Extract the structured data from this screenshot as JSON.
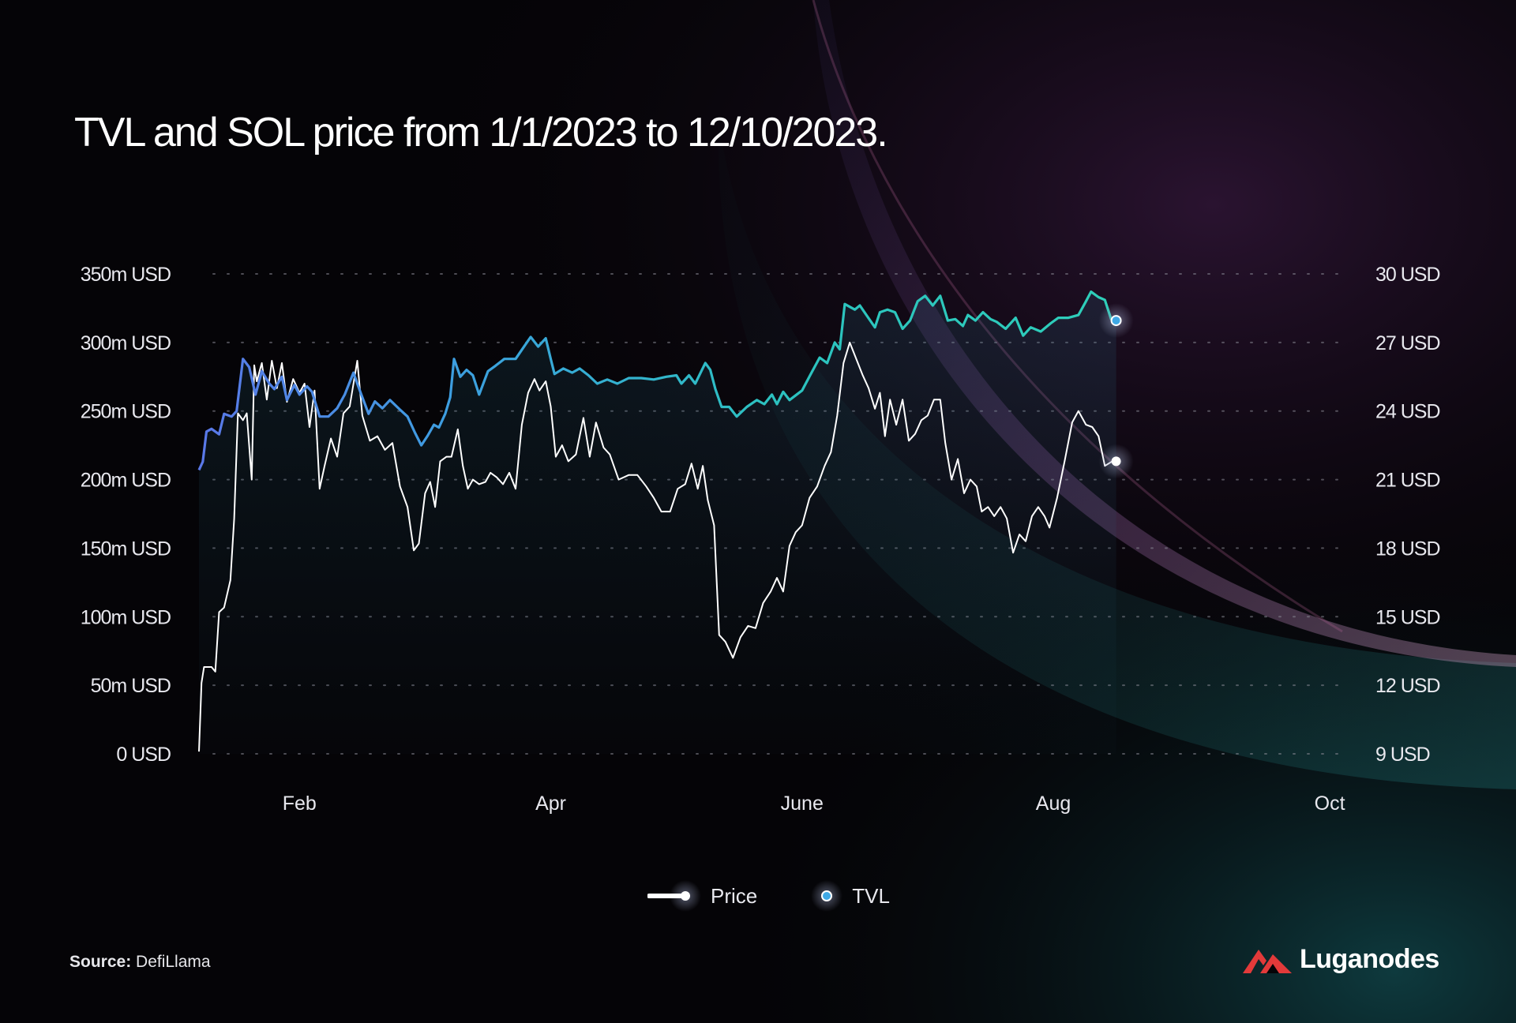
{
  "title": "TVL and SOL price from 1/1/2023 to 12/10/2023.",
  "source": {
    "label": "Source:",
    "value": "DefiLlama"
  },
  "brand": {
    "name": "Luganodes"
  },
  "legend": [
    {
      "label": "Price",
      "color": "#ffffff"
    },
    {
      "label": "TVL",
      "color": "#3fa9e6"
    }
  ],
  "colors": {
    "tvl_start": "#5a78e8",
    "tvl_end": "#2fd6b4",
    "price": "#ffffff",
    "background": "#050407",
    "accent_purple": "#b04a8a",
    "accent_teal": "#1a7a7a"
  },
  "chart_data": {
    "type": "line",
    "title": "TVL and SOL price from 1/1/2023 to 12/10/2023.",
    "x_ticks": [
      "Feb",
      "Apr",
      "June",
      "Aug",
      "Oct"
    ],
    "x_tick_months": [
      1.0,
      3.0,
      5.0,
      7.0,
      9.2
    ],
    "x_range_months": [
      0.2,
      9.3
    ],
    "y_left": {
      "ticks": [
        "0 USD",
        "50m USD",
        "100m USD",
        "150m USD",
        "200m USD",
        "250m USD",
        "300m USD",
        "350m USD"
      ],
      "range": [
        0,
        350
      ]
    },
    "y_right": {
      "ticks": [
        "9 USD",
        "12 USD",
        "15 USD",
        "18 USD",
        "21 USD",
        "24 USD",
        "27 USD",
        "30 USD"
      ],
      "range": [
        9,
        30
      ]
    },
    "grid": "horizontal dotted",
    "legend_position": "bottom-center",
    "series": [
      {
        "name": "TVL",
        "axis": "left",
        "unit": "m USD",
        "points": [
          [
            0.2,
            207
          ],
          [
            0.23,
            213
          ],
          [
            0.26,
            235
          ],
          [
            0.3,
            237
          ],
          [
            0.36,
            233
          ],
          [
            0.4,
            248
          ],
          [
            0.46,
            246
          ],
          [
            0.5,
            250
          ],
          [
            0.55,
            288
          ],
          [
            0.6,
            282
          ],
          [
            0.65,
            262
          ],
          [
            0.7,
            279
          ],
          [
            0.76,
            270
          ],
          [
            0.8,
            266
          ],
          [
            0.86,
            275
          ],
          [
            0.9,
            258
          ],
          [
            0.96,
            269
          ],
          [
            1.0,
            262
          ],
          [
            1.06,
            268
          ],
          [
            1.1,
            264
          ],
          [
            1.16,
            246
          ],
          [
            1.23,
            246
          ],
          [
            1.3,
            252
          ],
          [
            1.36,
            262
          ],
          [
            1.43,
            278
          ],
          [
            1.46,
            270
          ],
          [
            1.5,
            260
          ],
          [
            1.55,
            248
          ],
          [
            1.6,
            257
          ],
          [
            1.66,
            252
          ],
          [
            1.72,
            258
          ],
          [
            1.8,
            251
          ],
          [
            1.86,
            246
          ],
          [
            1.92,
            234
          ],
          [
            1.97,
            225
          ],
          [
            2.02,
            232
          ],
          [
            2.07,
            240
          ],
          [
            2.11,
            238
          ],
          [
            2.16,
            248
          ],
          [
            2.2,
            260
          ],
          [
            2.23,
            288
          ],
          [
            2.28,
            275
          ],
          [
            2.33,
            280
          ],
          [
            2.38,
            276
          ],
          [
            2.43,
            262
          ],
          [
            2.5,
            279
          ],
          [
            2.56,
            283
          ],
          [
            2.63,
            288
          ],
          [
            2.72,
            288
          ],
          [
            2.78,
            296
          ],
          [
            2.84,
            304
          ],
          [
            2.9,
            297
          ],
          [
            2.96,
            303
          ],
          [
            3.0,
            288
          ],
          [
            3.03,
            277
          ],
          [
            3.1,
            281
          ],
          [
            3.17,
            278
          ],
          [
            3.23,
            281
          ],
          [
            3.3,
            276
          ],
          [
            3.37,
            270
          ],
          [
            3.45,
            273
          ],
          [
            3.53,
            270
          ],
          [
            3.62,
            274
          ],
          [
            3.72,
            274
          ],
          [
            3.82,
            273
          ],
          [
            3.92,
            275
          ],
          [
            4.0,
            276
          ],
          [
            4.04,
            270
          ],
          [
            4.1,
            276
          ],
          [
            4.15,
            270
          ],
          [
            4.23,
            285
          ],
          [
            4.27,
            280
          ],
          [
            4.31,
            266
          ],
          [
            4.36,
            253
          ],
          [
            4.42,
            253
          ],
          [
            4.48,
            246
          ],
          [
            4.56,
            253
          ],
          [
            4.64,
            258
          ],
          [
            4.7,
            255
          ],
          [
            4.76,
            262
          ],
          [
            4.8,
            255
          ],
          [
            4.85,
            264
          ],
          [
            4.9,
            258
          ],
          [
            5.0,
            265
          ],
          [
            5.07,
            277
          ],
          [
            5.14,
            289
          ],
          [
            5.2,
            285
          ],
          [
            5.26,
            300
          ],
          [
            5.3,
            295
          ],
          [
            5.34,
            328
          ],
          [
            5.38,
            326
          ],
          [
            5.42,
            324
          ],
          [
            5.46,
            327
          ],
          [
            5.52,
            319
          ],
          [
            5.58,
            311
          ],
          [
            5.62,
            322
          ],
          [
            5.68,
            324
          ],
          [
            5.74,
            322
          ],
          [
            5.8,
            310
          ],
          [
            5.86,
            316
          ],
          [
            5.92,
            330
          ],
          [
            5.98,
            334
          ],
          [
            6.04,
            327
          ],
          [
            6.1,
            334
          ],
          [
            6.16,
            316
          ],
          [
            6.22,
            317
          ],
          [
            6.28,
            312
          ],
          [
            6.32,
            320
          ],
          [
            6.38,
            316
          ],
          [
            6.44,
            322
          ],
          [
            6.5,
            317
          ],
          [
            6.55,
            315
          ],
          [
            6.62,
            310
          ],
          [
            6.7,
            318
          ],
          [
            6.76,
            305
          ],
          [
            6.82,
            311
          ],
          [
            6.9,
            308
          ],
          [
            6.98,
            314
          ],
          [
            7.04,
            318
          ],
          [
            7.12,
            318
          ],
          [
            7.2,
            320
          ],
          [
            7.26,
            330
          ],
          [
            7.3,
            337
          ],
          [
            7.36,
            333
          ],
          [
            7.41,
            331
          ],
          [
            7.46,
            317
          ],
          [
            7.5,
            316
          ]
        ]
      },
      {
        "name": "Price",
        "axis": "right",
        "unit": "USD",
        "points": [
          [
            0.2,
            9.1
          ],
          [
            0.22,
            12.1
          ],
          [
            0.24,
            12.8
          ],
          [
            0.3,
            12.8
          ],
          [
            0.33,
            12.6
          ],
          [
            0.36,
            15.2
          ],
          [
            0.4,
            15.4
          ],
          [
            0.45,
            16.6
          ],
          [
            0.48,
            19.3
          ],
          [
            0.51,
            23.9
          ],
          [
            0.55,
            23.6
          ],
          [
            0.58,
            23.9
          ],
          [
            0.62,
            21.0
          ],
          [
            0.64,
            26.0
          ],
          [
            0.66,
            25.3
          ],
          [
            0.7,
            26.1
          ],
          [
            0.74,
            24.5
          ],
          [
            0.78,
            26.2
          ],
          [
            0.82,
            25.0
          ],
          [
            0.86,
            26.1
          ],
          [
            0.9,
            24.4
          ],
          [
            0.95,
            25.4
          ],
          [
            1.0,
            24.8
          ],
          [
            1.04,
            25.2
          ],
          [
            1.08,
            23.3
          ],
          [
            1.12,
            24.9
          ],
          [
            1.16,
            20.6
          ],
          [
            1.2,
            21.6
          ],
          [
            1.25,
            22.8
          ],
          [
            1.3,
            22.0
          ],
          [
            1.35,
            23.9
          ],
          [
            1.4,
            24.2
          ],
          [
            1.46,
            26.2
          ],
          [
            1.5,
            23.8
          ],
          [
            1.56,
            22.7
          ],
          [
            1.62,
            22.9
          ],
          [
            1.68,
            22.3
          ],
          [
            1.74,
            22.6
          ],
          [
            1.8,
            20.7
          ],
          [
            1.86,
            19.8
          ],
          [
            1.91,
            17.9
          ],
          [
            1.95,
            18.2
          ],
          [
            2.0,
            20.4
          ],
          [
            2.04,
            20.9
          ],
          [
            2.08,
            19.8
          ],
          [
            2.12,
            21.8
          ],
          [
            2.17,
            22.0
          ],
          [
            2.21,
            22.0
          ],
          [
            2.26,
            23.2
          ],
          [
            2.3,
            21.6
          ],
          [
            2.34,
            20.6
          ],
          [
            2.38,
            21.0
          ],
          [
            2.43,
            20.8
          ],
          [
            2.48,
            20.9
          ],
          [
            2.52,
            21.3
          ],
          [
            2.57,
            21.1
          ],
          [
            2.62,
            20.8
          ],
          [
            2.67,
            21.3
          ],
          [
            2.72,
            20.6
          ],
          [
            2.77,
            23.4
          ],
          [
            2.82,
            24.8
          ],
          [
            2.87,
            25.4
          ],
          [
            2.91,
            24.9
          ],
          [
            2.96,
            25.3
          ],
          [
            3.0,
            24.2
          ],
          [
            3.04,
            22.0
          ],
          [
            3.09,
            22.5
          ],
          [
            3.14,
            21.8
          ],
          [
            3.2,
            22.1
          ],
          [
            3.26,
            23.7
          ],
          [
            3.31,
            22.0
          ],
          [
            3.36,
            23.5
          ],
          [
            3.42,
            22.4
          ],
          [
            3.47,
            22.1
          ],
          [
            3.54,
            21.0
          ],
          [
            3.62,
            21.2
          ],
          [
            3.69,
            21.2
          ],
          [
            3.76,
            20.7
          ],
          [
            3.82,
            20.2
          ],
          [
            3.88,
            19.6
          ],
          [
            3.95,
            19.6
          ],
          [
            4.01,
            20.6
          ],
          [
            4.07,
            20.8
          ],
          [
            4.12,
            21.7
          ],
          [
            4.17,
            20.6
          ],
          [
            4.21,
            21.6
          ],
          [
            4.25,
            20.1
          ],
          [
            4.3,
            19.0
          ],
          [
            4.34,
            14.2
          ],
          [
            4.39,
            13.9
          ],
          [
            4.45,
            13.2
          ],
          [
            4.51,
            14.1
          ],
          [
            4.57,
            14.6
          ],
          [
            4.63,
            14.5
          ],
          [
            4.69,
            15.6
          ],
          [
            4.75,
            16.1
          ],
          [
            4.8,
            16.7
          ],
          [
            4.85,
            16.1
          ],
          [
            4.9,
            18.1
          ],
          [
            4.95,
            18.7
          ],
          [
            5.0,
            19.0
          ],
          [
            5.06,
            20.2
          ],
          [
            5.12,
            20.7
          ],
          [
            5.18,
            21.6
          ],
          [
            5.23,
            22.2
          ],
          [
            5.28,
            23.8
          ],
          [
            5.33,
            26.1
          ],
          [
            5.38,
            27.0
          ],
          [
            5.43,
            26.3
          ],
          [
            5.48,
            25.6
          ],
          [
            5.53,
            25.0
          ],
          [
            5.58,
            24.1
          ],
          [
            5.62,
            24.8
          ],
          [
            5.66,
            22.9
          ],
          [
            5.7,
            24.5
          ],
          [
            5.75,
            23.4
          ],
          [
            5.8,
            24.5
          ],
          [
            5.85,
            22.7
          ],
          [
            5.9,
            23.0
          ],
          [
            5.95,
            23.6
          ],
          [
            6.0,
            23.8
          ],
          [
            6.05,
            24.5
          ],
          [
            6.1,
            24.5
          ],
          [
            6.14,
            22.6
          ],
          [
            6.19,
            21.0
          ],
          [
            6.24,
            21.9
          ],
          [
            6.29,
            20.4
          ],
          [
            6.34,
            21.0
          ],
          [
            6.39,
            20.7
          ],
          [
            6.43,
            19.6
          ],
          [
            6.48,
            19.8
          ],
          [
            6.53,
            19.4
          ],
          [
            6.58,
            19.8
          ],
          [
            6.63,
            19.3
          ],
          [
            6.68,
            17.8
          ],
          [
            6.73,
            18.6
          ],
          [
            6.78,
            18.3
          ],
          [
            6.83,
            19.4
          ],
          [
            6.88,
            19.8
          ],
          [
            6.93,
            19.4
          ],
          [
            6.97,
            18.9
          ],
          [
            7.03,
            20.2
          ],
          [
            7.09,
            21.8
          ],
          [
            7.15,
            23.5
          ],
          [
            7.2,
            24.0
          ],
          [
            7.26,
            23.4
          ],
          [
            7.31,
            23.3
          ],
          [
            7.36,
            22.9
          ],
          [
            7.41,
            21.6
          ],
          [
            7.47,
            21.8
          ],
          [
            7.5,
            21.8
          ]
        ]
      }
    ]
  }
}
